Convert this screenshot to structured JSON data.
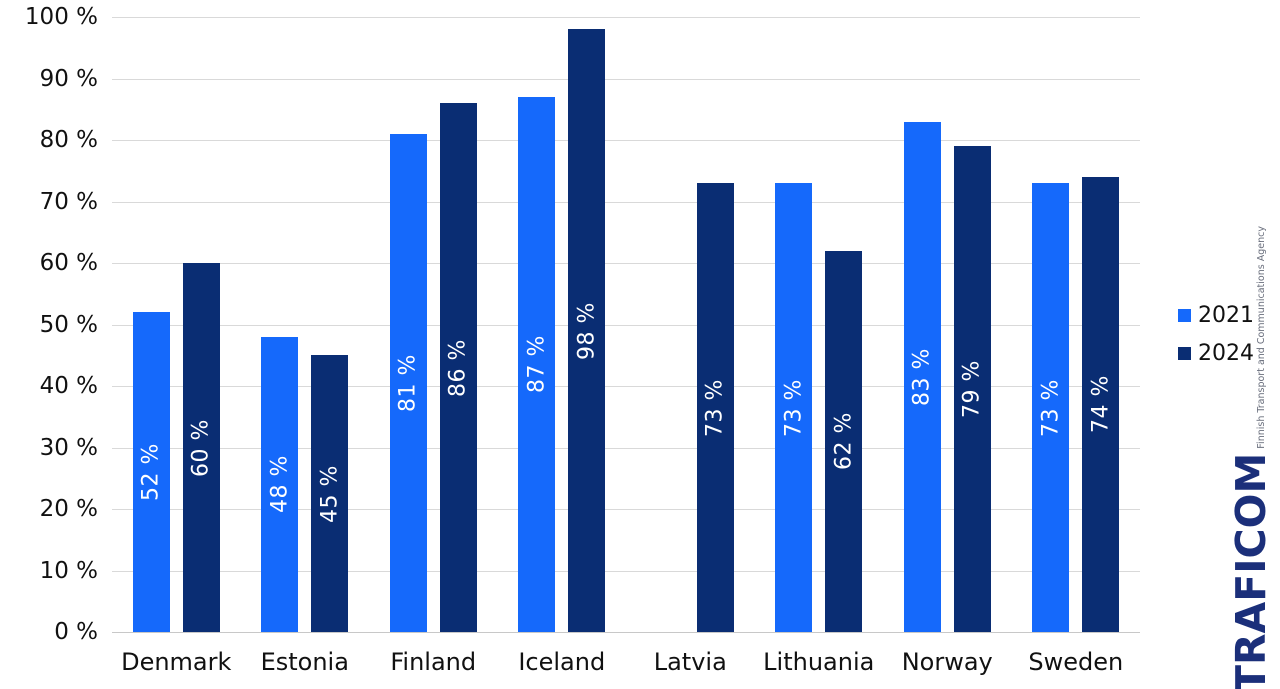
{
  "chart_data": {
    "type": "bar",
    "title": "",
    "xlabel": "",
    "ylabel": "",
    "categories": [
      "Denmark",
      "Estonia",
      "Finland",
      "Iceland",
      "Latvia",
      "Lithuania",
      "Norway",
      "Sweden"
    ],
    "series": [
      {
        "name": "2021",
        "color": "#1569FB",
        "values": [
          52,
          48,
          81,
          87,
          null,
          73,
          83,
          73
        ]
      },
      {
        "name": "2024",
        "color": "#0A2D73",
        "values": [
          60,
          45,
          86,
          98,
          73,
          62,
          79,
          74
        ]
      }
    ],
    "bar_label_suffix": " %",
    "ylim": [
      0,
      100
    ],
    "yticks": [
      {
        "value": 100,
        "label": "100 %"
      },
      {
        "value": 90,
        "label": "90 %"
      },
      {
        "value": 80,
        "label": "80 %"
      },
      {
        "value": 70,
        "label": "70 %"
      },
      {
        "value": 60,
        "label": "60 %"
      },
      {
        "value": 50,
        "label": "50 %"
      },
      {
        "value": 40,
        "label": "40 %"
      },
      {
        "value": 30,
        "label": "30 %"
      },
      {
        "value": 20,
        "label": "20 %"
      },
      {
        "value": 10,
        "label": "10 %"
      },
      {
        "value": 0,
        "label": "0 %"
      }
    ],
    "grid": true,
    "legend_position": "right",
    "value_labels": "inside-vertical-white"
  },
  "legend": {
    "items": [
      {
        "label": "2021",
        "color": "#1569FB"
      },
      {
        "label": "2024",
        "color": "#0A2D73"
      }
    ]
  },
  "logo": {
    "wordmark": "TRAFICOM",
    "tagline": "Finnish Transport and Communications Agency"
  },
  "colors": {
    "series_2021": "#1569FB",
    "series_2024": "#0A2D73",
    "gridline": "#D9D9D9",
    "axis_text": "#111111",
    "logo_navy": "#1B2F7A"
  }
}
